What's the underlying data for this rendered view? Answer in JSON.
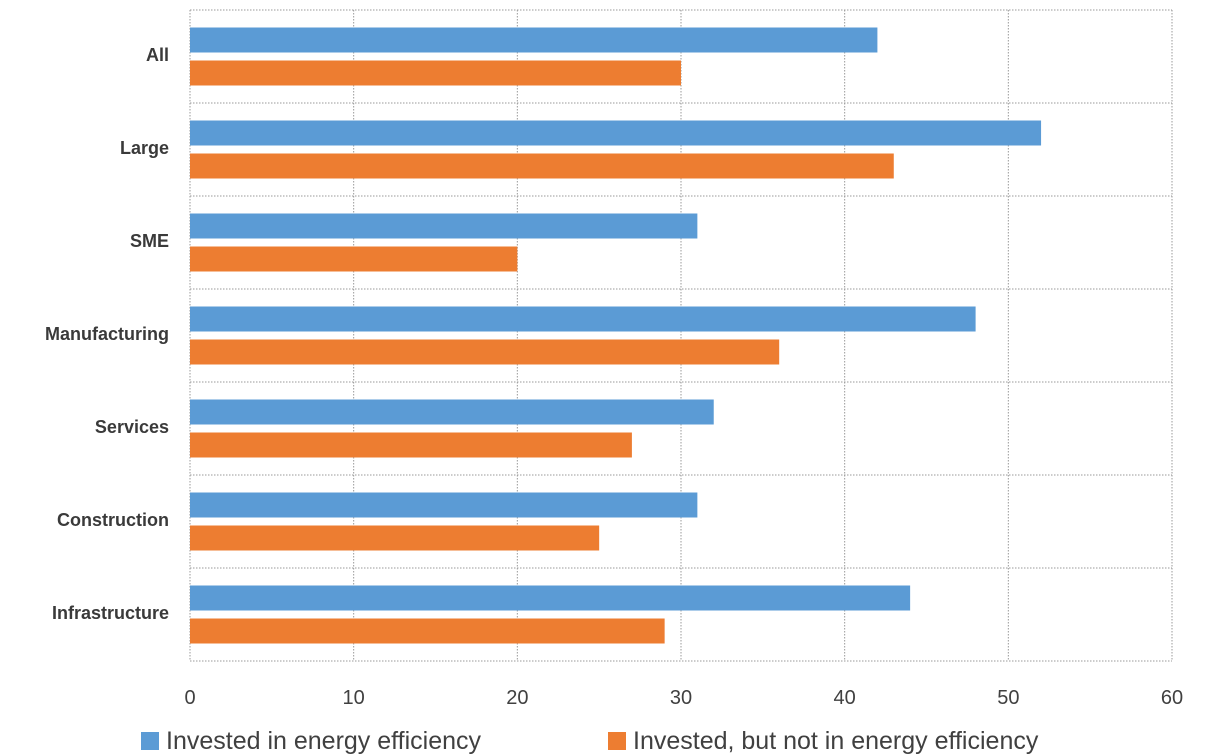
{
  "colors": {
    "series_1": "#5b9bd5",
    "series_2": "#ed7d31"
  },
  "chart_data": {
    "type": "bar",
    "orientation": "horizontal",
    "categories": [
      "All",
      "Large",
      "SME",
      "Manufacturing",
      "Services",
      "Construction",
      "Infrastructure"
    ],
    "series": [
      {
        "name": "Invested in energy efficiency",
        "values": [
          42,
          52,
          31,
          48,
          32,
          31,
          44
        ]
      },
      {
        "name": "Invested, but not in energy efficiency",
        "values": [
          30,
          43,
          20,
          36,
          27,
          25,
          29
        ]
      }
    ],
    "xlim": [
      0,
      60
    ],
    "xticks": [
      "0",
      "10",
      "20",
      "30",
      "40",
      "50",
      "60"
    ],
    "grid": true,
    "legend": "bottom"
  }
}
